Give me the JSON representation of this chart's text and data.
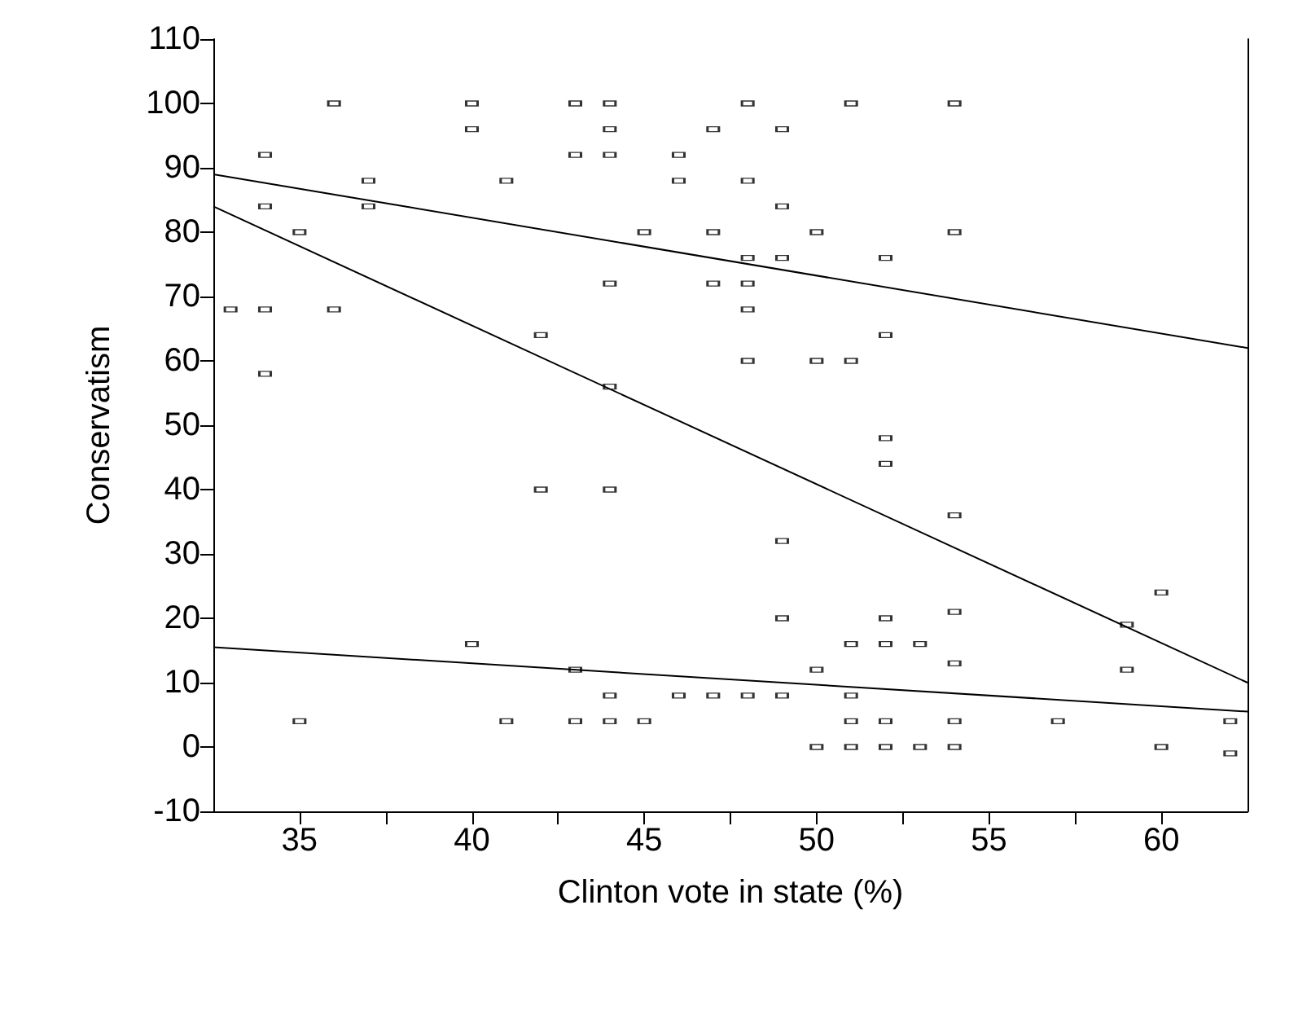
{
  "chart_data": {
    "type": "scatter",
    "xlabel": "Clinton vote in state (%)",
    "ylabel": "Conservatism",
    "xlim": [
      32.5,
      62.5
    ],
    "xticks": [
      35,
      {
        "value": 37.5,
        "label": null
      },
      40,
      {
        "value": 42.5,
        "label": null
      },
      45,
      {
        "value": 47.5,
        "label": null
      },
      50,
      {
        "value": 52.5,
        "label": null
      },
      55,
      {
        "value": 57.5,
        "label": null
      },
      60
    ],
    "ylim": [
      -10,
      110
    ],
    "yticks": [
      -10,
      0,
      10,
      20,
      30,
      40,
      50,
      60,
      70,
      80,
      90,
      100,
      110
    ],
    "grid": false,
    "series": [
      {
        "type": "scatter",
        "color": "#000000",
        "x": [
          36,
          40,
          40,
          34,
          37,
          41,
          34,
          37,
          35,
          33,
          34,
          36,
          42,
          34,
          42,
          43,
          44,
          48,
          51,
          54,
          44,
          47,
          49,
          43,
          44,
          46,
          46,
          48,
          49,
          45,
          47,
          50,
          54,
          48,
          49,
          52,
          44,
          47,
          48,
          48,
          52,
          48,
          50,
          51,
          44,
          52,
          52,
          44,
          54,
          40,
          35,
          41,
          49,
          49,
          52,
          54,
          51,
          52,
          53,
          54,
          43,
          50,
          44,
          46,
          47,
          48,
          49,
          51,
          43,
          44,
          45,
          51,
          52,
          54,
          50,
          51,
          52,
          53,
          54,
          60,
          59,
          59,
          57,
          62,
          60,
          62
        ],
        "values": [
          100,
          100,
          96,
          92,
          88,
          88,
          84,
          84,
          80,
          68,
          68,
          68,
          64,
          58,
          40,
          100,
          100,
          100,
          100,
          100,
          96,
          96,
          96,
          92,
          92,
          92,
          88,
          88,
          84,
          80,
          80,
          80,
          80,
          76,
          76,
          76,
          72,
          72,
          72,
          68,
          64,
          60,
          60,
          60,
          56,
          48,
          44,
          40,
          36,
          16,
          4,
          4,
          32,
          20,
          20,
          21,
          16,
          16,
          16,
          13,
          12,
          12,
          8,
          8,
          8,
          8,
          8,
          8,
          4,
          4,
          4,
          4,
          4,
          4,
          0,
          0,
          0,
          0,
          0,
          24,
          19,
          12,
          4,
          4,
          0,
          -1
        ]
      },
      {
        "type": "line",
        "color": "#000000",
        "x": [
          32.5,
          62.5
        ],
        "values": [
          89,
          62
        ]
      },
      {
        "type": "line",
        "color": "#000000",
        "x": [
          32.5,
          62.5
        ],
        "values": [
          84,
          10
        ]
      },
      {
        "type": "line",
        "color": "#000000",
        "x": [
          32.5,
          62.5
        ],
        "values": [
          15.5,
          5.5
        ]
      }
    ]
  }
}
